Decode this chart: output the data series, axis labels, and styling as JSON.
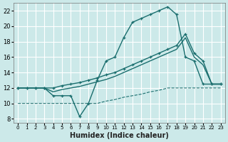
{
  "xlabel": "Humidex (Indice chaleur)",
  "background_color": "#cce9e9",
  "grid_color": "#ffffff",
  "line_color": "#1a6e6e",
  "xlim": [
    -0.5,
    23.5
  ],
  "ylim": [
    7.5,
    23.0
  ],
  "xticks": [
    0,
    1,
    2,
    3,
    4,
    5,
    6,
    7,
    8,
    9,
    10,
    11,
    12,
    13,
    14,
    15,
    16,
    17,
    18,
    19,
    20,
    21,
    22,
    23
  ],
  "yticks": [
    8,
    10,
    12,
    14,
    16,
    18,
    20,
    22
  ],
  "line1_x": [
    0,
    1,
    2,
    3,
    4,
    5,
    6,
    7,
    8,
    9,
    10,
    11,
    12,
    13,
    14,
    15,
    16,
    17,
    18,
    19,
    20,
    21,
    22,
    23
  ],
  "line1_y": [
    12,
    12,
    12,
    12,
    11,
    11,
    11,
    8.3,
    10,
    13,
    15.5,
    16.0,
    18.5,
    20.5,
    21.0,
    21.5,
    22.0,
    22.5,
    21.5,
    16.0,
    15.5,
    12.5,
    12.5,
    12.5
  ],
  "line2_x": [
    0,
    1,
    2,
    3,
    4,
    5,
    6,
    7,
    8,
    9,
    10,
    11,
    12,
    13,
    14,
    15,
    16,
    17,
    18,
    19,
    20,
    21,
    22,
    23
  ],
  "line2_y": [
    12,
    12,
    12,
    12,
    12,
    12.3,
    12.5,
    12.7,
    13.0,
    13.3,
    13.7,
    14.0,
    14.5,
    15.0,
    15.5,
    16.0,
    16.5,
    17.0,
    17.5,
    19.0,
    16.5,
    15.5,
    12.5,
    12.5
  ],
  "line3_x": [
    0,
    1,
    2,
    3,
    4,
    5,
    6,
    7,
    8,
    9,
    10,
    11,
    12,
    13,
    14,
    15,
    16,
    17,
    18,
    19,
    20,
    21,
    22,
    23
  ],
  "line3_y": [
    12,
    12,
    12,
    12,
    11.5,
    11.8,
    12.0,
    12.2,
    12.5,
    12.8,
    13.1,
    13.5,
    14.0,
    14.5,
    15.0,
    15.5,
    16.0,
    16.5,
    17.0,
    18.5,
    16.0,
    15.0,
    12.5,
    12.5
  ],
  "line4_x": [
    0,
    1,
    2,
    3,
    4,
    5,
    6,
    7,
    8,
    9,
    10,
    11,
    12,
    13,
    14,
    15,
    16,
    17,
    18,
    19,
    20,
    21,
    22,
    23
  ],
  "line4_y": [
    10,
    10,
    10,
    10,
    10,
    10,
    10,
    10,
    10,
    10,
    10.3,
    10.5,
    10.8,
    11.0,
    11.2,
    11.5,
    11.7,
    12.0,
    12.0,
    12.0,
    12.0,
    12.0,
    12.0,
    12.0
  ]
}
